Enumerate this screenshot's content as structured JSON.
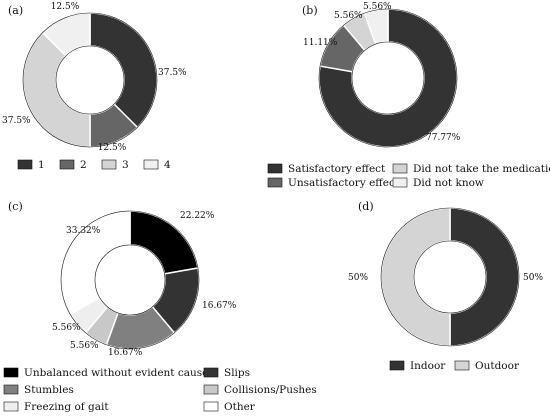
{
  "chart_data": [
    {
      "type": "pie",
      "donut": true,
      "panel_label": "(a)",
      "categories": [
        "1",
        "2",
        "3",
        "4"
      ],
      "values": [
        37.5,
        12.5,
        37.5,
        12.5
      ],
      "value_labels": [
        "37.5%",
        "12.5%",
        "37.5%",
        "12.5%"
      ],
      "colors": [
        "#333333",
        "#666666",
        "#d4d4d4",
        "#f0f0f0"
      ],
      "legend_position": "bottom"
    },
    {
      "type": "pie",
      "donut": true,
      "panel_label": "(b)",
      "categories": [
        "Satisfactory effect",
        "Unsatisfactory effect",
        "Did not take the medication",
        "Did not know"
      ],
      "values": [
        77.77,
        11.11,
        5.56,
        5.56
      ],
      "value_labels": [
        "77.77%",
        "11.11%",
        "5.56%",
        "5.56%"
      ],
      "colors": [
        "#333333",
        "#666666",
        "#d4d4d4",
        "#f0f0f0"
      ],
      "legend_position": "bottom"
    },
    {
      "type": "pie",
      "donut": true,
      "panel_label": "(c)",
      "categories": [
        "Unbalanced without evident cause",
        "Slips",
        "Stumbles",
        "Collisions/Pushes",
        "Freezing of gait",
        "Other"
      ],
      "values": [
        22.22,
        16.67,
        16.67,
        5.56,
        5.56,
        33.32
      ],
      "value_labels": [
        "22.22%",
        "16.67%",
        "16.67%",
        "5.56%",
        "5.56%",
        "33.32%"
      ],
      "colors": [
        "#000000",
        "#333333",
        "#808080",
        "#c8c8c8",
        "#eeeeee",
        "#ffffff"
      ],
      "legend_position": "bottom"
    },
    {
      "type": "pie",
      "donut": true,
      "panel_label": "(d)",
      "categories": [
        "Indoor",
        "Outdoor"
      ],
      "values": [
        50,
        50
      ],
      "value_labels": [
        "50%",
        "50%"
      ],
      "colors": [
        "#333333",
        "#d4d4d4"
      ],
      "legend_position": "bottom"
    }
  ]
}
